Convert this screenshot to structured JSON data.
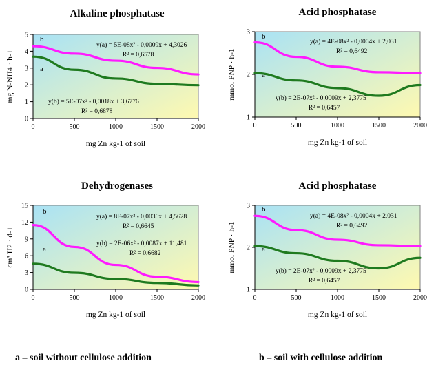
{
  "colors": {
    "series_a": "#1f7a1f",
    "series_b": "#ff1aff",
    "plot_gradient_left": "#a9e2f5",
    "plot_gradient_right": "#fff9b0"
  },
  "chart_data": [
    {
      "type": "line",
      "title": "Alkaline phosphatase",
      "xlabel": "mg Zn kg-1 of soil",
      "ylabel": "mg N-NH4 · h-1",
      "xlim": [
        0,
        2000
      ],
      "ylim": [
        0,
        5
      ],
      "xticks": [
        0,
        500,
        1000,
        1500,
        2000
      ],
      "yticks": [
        0,
        1,
        2,
        3,
        4,
        5
      ],
      "x": [
        0,
        500,
        1000,
        1500,
        2000
      ],
      "series": [
        {
          "name": "a",
          "values": [
            3.68,
            2.9,
            2.38,
            2.06,
            1.98
          ]
        },
        {
          "name": "b",
          "values": [
            4.3,
            3.86,
            3.44,
            3.01,
            2.62
          ]
        }
      ],
      "eq_a": "y(a) = 5E-08x² - 0,0009x + 4,3026",
      "r2_a": "R² = 0,6578",
      "eq_b": "y(b) = 5E-07x² - 0,0018x + 3,6776",
      "r2_b": "R² = 0,6878"
    },
    {
      "type": "line",
      "title": "Acid phosphatase",
      "xlabel": "mg Zn kg-1 of soil",
      "ylabel": "mmol PNP · h-1",
      "xlim": [
        0,
        2000
      ],
      "ylim": [
        1,
        3
      ],
      "xticks": [
        0,
        500,
        1000,
        1500,
        2000
      ],
      "yticks": [
        1,
        2,
        3
      ],
      "x": [
        0,
        500,
        1000,
        1500,
        2000
      ],
      "series": [
        {
          "name": "a",
          "values": [
            2.03,
            1.86,
            1.68,
            1.5,
            1.75
          ]
        },
        {
          "name": "b",
          "values": [
            2.75,
            2.41,
            2.18,
            2.05,
            2.03
          ]
        }
      ],
      "eq_a": "y(a) = 4E-08x² - 0,0004x + 2,031",
      "r2_a": "R² = 0,6492",
      "eq_b": "y(b) = 2E-07x² - 0,0009x + 2,3775",
      "r2_b": "R² = 0,6457"
    },
    {
      "type": "line",
      "title": "Dehydrogenases",
      "xlabel": "mg Zn kg-1 of soil",
      "ylabel": "cm³ H2 · d-1",
      "xlim": [
        0,
        2000
      ],
      "ylim": [
        0,
        15
      ],
      "xticks": [
        0,
        500,
        1000,
        1500,
        2000
      ],
      "yticks": [
        0,
        3,
        6,
        9,
        12,
        15
      ],
      "x": [
        0,
        500,
        1000,
        1500,
        2000
      ],
      "series": [
        {
          "name": "a",
          "values": [
            4.56,
            2.95,
            1.85,
            1.15,
            0.7
          ]
        },
        {
          "name": "b",
          "values": [
            11.48,
            7.57,
            4.36,
            2.25,
            1.3
          ]
        }
      ],
      "eq_a": "y(a) = 8E-07x² - 0,0036x + 4,5628",
      "r2_a": "R² = 0,6645",
      "eq_b": "y(b) = 2E-06x² - 0,0087x + 11,481",
      "r2_b": "R² = 0,6682"
    },
    {
      "type": "line",
      "title": "Acid phosphatase",
      "xlabel": "mg Zn kg-1 of soil",
      "ylabel": "mmol PNP · h-1",
      "xlim": [
        0,
        2000
      ],
      "ylim": [
        1,
        3
      ],
      "xticks": [
        0,
        500,
        1000,
        1500,
        2000
      ],
      "yticks": [
        1,
        2,
        3
      ],
      "x": [
        0,
        500,
        1000,
        1500,
        2000
      ],
      "series": [
        {
          "name": "a",
          "values": [
            2.03,
            1.86,
            1.68,
            1.5,
            1.75
          ]
        },
        {
          "name": "b",
          "values": [
            2.75,
            2.41,
            2.18,
            2.05,
            2.03
          ]
        }
      ],
      "eq_a": "y(a) = 4E-08x² - 0,0004x + 2,031",
      "r2_a": "R² = 0,6492",
      "eq_b": "y(b) = 2E-07x² - 0,0009x + 2,3775",
      "r2_b": "R² = 0,6457"
    }
  ],
  "footer": {
    "left": "a – soil without cellulose addition",
    "right": "b – soil with cellulose addition"
  }
}
